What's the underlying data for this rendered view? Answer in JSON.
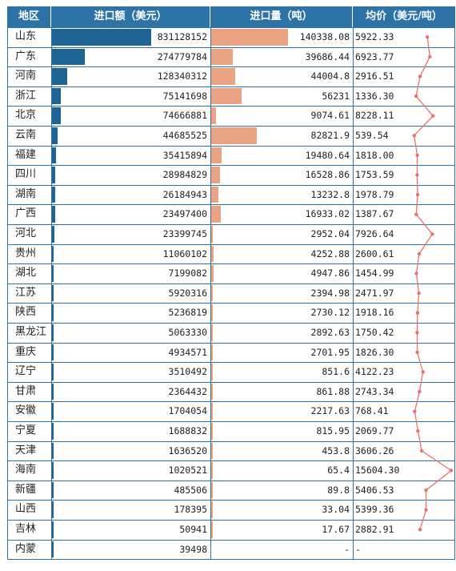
{
  "headers": {
    "region": "地区",
    "value": "进口额（美元）",
    "volume": "进口量（吨）",
    "price": "均价（美元/吨）"
  },
  "rows": [
    {
      "region": "山东",
      "value": 831128152,
      "value_text": "831128152",
      "volume": 140338.08,
      "volume_text": "140338.08",
      "price": 5922.33,
      "price_text": "5922.33"
    },
    {
      "region": "广东",
      "value": 274779784,
      "value_text": "274779784",
      "volume": 39686.44,
      "volume_text": "39686.44",
      "price": 6923.77,
      "price_text": "6923.77"
    },
    {
      "region": "河南",
      "value": 128340312,
      "value_text": "128340312",
      "volume": 44004.8,
      "volume_text": "44004.8",
      "price": 2916.51,
      "price_text": "2916.51"
    },
    {
      "region": "浙江",
      "value": 75141698,
      "value_text": "75141698",
      "volume": 56231,
      "volume_text": "56231",
      "price": 1336.3,
      "price_text": "1336.30"
    },
    {
      "region": "北京",
      "value": 74666881,
      "value_text": "74666881",
      "volume": 9074.61,
      "volume_text": "9074.61",
      "price": 8228.11,
      "price_text": "8228.11"
    },
    {
      "region": "云南",
      "value": 44685525,
      "value_text": "44685525",
      "volume": 82821.9,
      "volume_text": "82821.9",
      "price": 539.54,
      "price_text": "539.54"
    },
    {
      "region": "福建",
      "value": 35415894,
      "value_text": "35415894",
      "volume": 19480.64,
      "volume_text": "19480.64",
      "price": 1818.0,
      "price_text": "1818.00"
    },
    {
      "region": "四川",
      "value": 28984829,
      "value_text": "28984829",
      "volume": 16528.86,
      "volume_text": "16528.86",
      "price": 1753.59,
      "price_text": "1753.59"
    },
    {
      "region": "湖南",
      "value": 26184943,
      "value_text": "26184943",
      "volume": 13232.8,
      "volume_text": "13232.8",
      "price": 1978.79,
      "price_text": "1978.79"
    },
    {
      "region": "广西",
      "value": 23497400,
      "value_text": "23497400",
      "volume": 16933.02,
      "volume_text": "16933.02",
      "price": 1387.67,
      "price_text": "1387.67"
    },
    {
      "region": "河北",
      "value": 23399745,
      "value_text": "23399745",
      "volume": 2952.04,
      "volume_text": "2952.04",
      "price": 7926.64,
      "price_text": "7926.64"
    },
    {
      "region": "贵州",
      "value": 11060102,
      "value_text": "11060102",
      "volume": 4252.88,
      "volume_text": "4252.88",
      "price": 2600.61,
      "price_text": "2600.61"
    },
    {
      "region": "湖北",
      "value": 7199082,
      "value_text": "7199082",
      "volume": 4947.86,
      "volume_text": "4947.86",
      "price": 1454.99,
      "price_text": "1454.99"
    },
    {
      "region": "江苏",
      "value": 5920316,
      "value_text": "5920316",
      "volume": 2394.98,
      "volume_text": "2394.98",
      "price": 2471.97,
      "price_text": "2471.97"
    },
    {
      "region": "陕西",
      "value": 5236819,
      "value_text": "5236819",
      "volume": 2730.12,
      "volume_text": "2730.12",
      "price": 1918.16,
      "price_text": "1918.16"
    },
    {
      "region": "黑龙江",
      "value": 5063330,
      "value_text": "5063330",
      "volume": 2892.63,
      "volume_text": "2892.63",
      "price": 1750.42,
      "price_text": "1750.42"
    },
    {
      "region": "重庆",
      "value": 4934571,
      "value_text": "4934571",
      "volume": 2701.95,
      "volume_text": "2701.95",
      "price": 1826.3,
      "price_text": "1826.30"
    },
    {
      "region": "辽宁",
      "value": 3510492,
      "value_text": "3510492",
      "volume": 851.6,
      "volume_text": "851.6",
      "price": 4122.23,
      "price_text": "4122.23"
    },
    {
      "region": "甘肃",
      "value": 2364432,
      "value_text": "2364432",
      "volume": 861.88,
      "volume_text": "861.88",
      "price": 2743.34,
      "price_text": "2743.34"
    },
    {
      "region": "安徽",
      "value": 1704054,
      "value_text": "1704054",
      "volume": 2217.63,
      "volume_text": "2217.63",
      "price": 768.41,
      "price_text": "768.41"
    },
    {
      "region": "宁夏",
      "value": 1688832,
      "value_text": "1688832",
      "volume": 815.95,
      "volume_text": "815.95",
      "price": 2069.77,
      "price_text": "2069.77"
    },
    {
      "region": "天津",
      "value": 1636520,
      "value_text": "1636520",
      "volume": 453.8,
      "volume_text": "453.8",
      "price": 3606.26,
      "price_text": "3606.26"
    },
    {
      "region": "海南",
      "value": 1020521,
      "value_text": "1020521",
      "volume": 65.4,
      "volume_text": "65.4",
      "price": 15604.3,
      "price_text": "15604.30"
    },
    {
      "region": "新疆",
      "value": 485506,
      "value_text": "485506",
      "volume": 89.8,
      "volume_text": "89.8",
      "price": 5406.53,
      "price_text": "5406.53"
    },
    {
      "region": "山西",
      "value": 178395,
      "value_text": "178395",
      "volume": 33.04,
      "volume_text": "33.04",
      "price": 5399.36,
      "price_text": "5399.36"
    },
    {
      "region": "吉林",
      "value": 50941,
      "value_text": "50941",
      "volume": 17.67,
      "volume_text": "17.67",
      "price": 2882.91,
      "price_text": "2882.91"
    },
    {
      "region": "内蒙",
      "value": 39498,
      "value_text": "39498",
      "volume": null,
      "volume_text": "-",
      "price": null,
      "price_text": "-"
    }
  ],
  "colors": {
    "header_bg": "#2e73a8",
    "header_text": "#ffffff",
    "grid": "#2e73a8",
    "value_bar": "#1d6494",
    "volume_bar": "#e9a382",
    "price_line": "#e8736a"
  },
  "chart_data": {
    "type": "table",
    "columns": [
      "地区",
      "进口额（美元）",
      "进口量（吨）",
      "均价（美元/吨）"
    ],
    "embedded_visuals": {
      "进口额（美元）": "bar",
      "进口量（吨）": "bar",
      "均价（美元/吨）": "line"
    },
    "categories": [
      "山东",
      "广东",
      "河南",
      "浙江",
      "北京",
      "云南",
      "福建",
      "四川",
      "湖南",
      "广西",
      "河北",
      "贵州",
      "湖北",
      "江苏",
      "陕西",
      "黑龙江",
      "重庆",
      "辽宁",
      "甘肃",
      "安徽",
      "宁夏",
      "天津",
      "海南",
      "新疆",
      "山西",
      "吉林",
      "内蒙"
    ],
    "series": [
      {
        "name": "进口额（美元）",
        "values": [
          831128152,
          274779784,
          128340312,
          75141698,
          74666881,
          44685525,
          35415894,
          28984829,
          26184943,
          23497400,
          23399745,
          11060102,
          7199082,
          5920316,
          5236819,
          5063330,
          4934571,
          3510492,
          2364432,
          1704054,
          1688832,
          1636520,
          1020521,
          485506,
          178395,
          50941,
          39498
        ]
      },
      {
        "name": "进口量（吨）",
        "values": [
          140338.08,
          39686.44,
          44004.8,
          56231,
          9074.61,
          82821.9,
          19480.64,
          16528.86,
          13232.8,
          16933.02,
          2952.04,
          4252.88,
          4947.86,
          2394.98,
          2730.12,
          2892.63,
          2701.95,
          851.6,
          861.88,
          2217.63,
          815.95,
          453.8,
          65.4,
          89.8,
          33.04,
          17.67,
          null
        ]
      },
      {
        "name": "均价（美元/吨）",
        "values": [
          5922.33,
          6923.77,
          2916.51,
          1336.3,
          8228.11,
          539.54,
          1818.0,
          1753.59,
          1978.79,
          1387.67,
          7926.64,
          2600.61,
          1454.99,
          2471.97,
          1918.16,
          1750.42,
          1826.3,
          4122.23,
          2743.34,
          768.41,
          2069.77,
          3606.26,
          15604.3,
          5406.53,
          5399.36,
          2882.91,
          null
        ]
      }
    ]
  }
}
